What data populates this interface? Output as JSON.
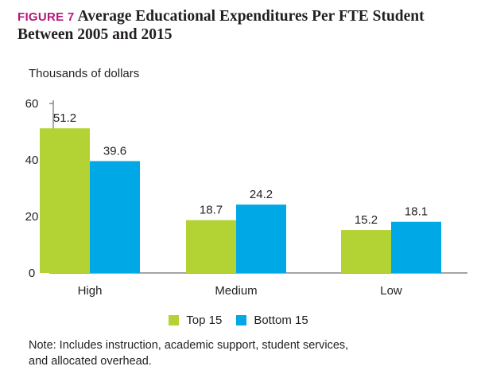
{
  "figure": {
    "label": "FIGURE 7",
    "title_line1": "Average Educational Expenditures Per FTE Student",
    "title_line2": "Between 2005 and 2015"
  },
  "chart_data": {
    "type": "bar",
    "ylabel": "Thousands of dollars",
    "xlabel": "",
    "categories": [
      "High",
      "Medium",
      "Low"
    ],
    "series": [
      {
        "name": "Top 15",
        "color": "#b3d334",
        "values": [
          51.2,
          18.7,
          15.2
        ]
      },
      {
        "name": "Bottom 15",
        "color": "#00a9e6",
        "values": [
          39.6,
          24.2,
          18.1
        ]
      }
    ],
    "ylim": [
      0,
      60
    ],
    "yticks": [
      0,
      20,
      40,
      60
    ],
    "data_labels": [
      "51.2",
      "18.7",
      "15.2",
      "39.6",
      "24.2",
      "18.1"
    ],
    "grid": false,
    "legend_position": "bottom"
  },
  "legend": {
    "items": [
      {
        "label": "Top 15",
        "color": "#b3d334"
      },
      {
        "label": "Bottom 15",
        "color": "#00a9e6"
      }
    ]
  },
  "note": {
    "line1": "Note: Includes instruction, academic support, student services,",
    "line2": "and allocated overhead."
  }
}
